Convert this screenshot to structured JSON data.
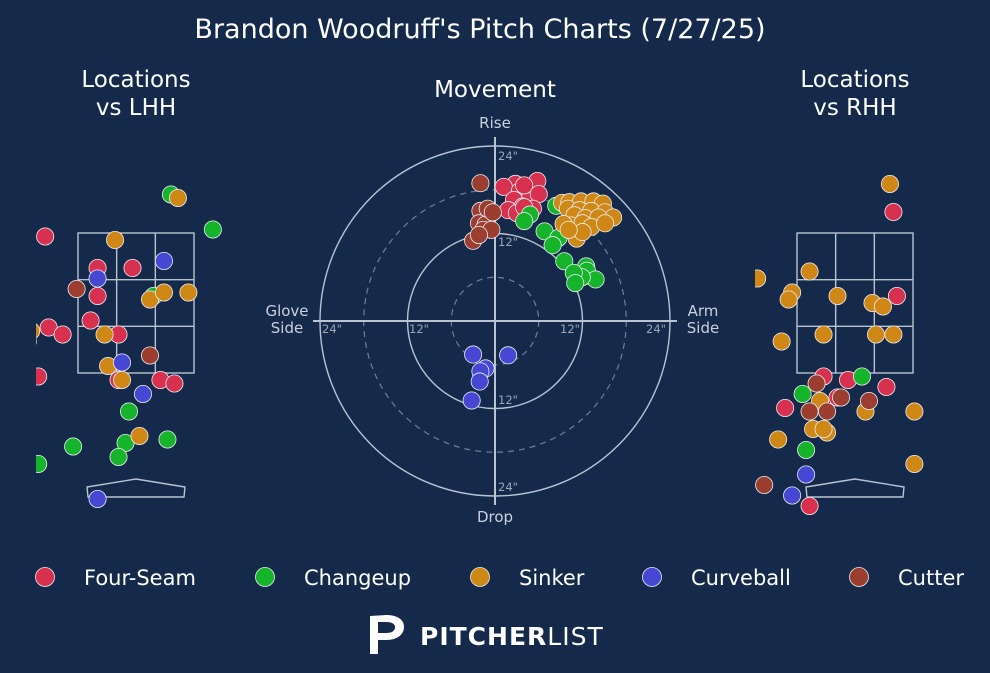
{
  "title": "Brandon Woodruff's Pitch Charts (7/27/25)",
  "colors": {
    "background": "#152a4a",
    "Four-Seam": "#d8304f",
    "Changeup": "#16b42a",
    "Sinker": "#cf8716",
    "Curveball": "#4648d4",
    "Cutter": "#9b3e30",
    "grid": "#b9c3d2"
  },
  "brand": {
    "strong": "PITCHER",
    "light": "LIST"
  },
  "chart_data": [
    {
      "type": "scatter",
      "title": "Locations\nvs LHH",
      "strike_zone": true,
      "series": [
        {
          "name": "Four-Seam",
          "points": [
            [
              -0.55,
              3.0
            ],
            [
              -0.05,
              3.0
            ],
            [
              -1.3,
              3.45
            ],
            [
              -0.55,
              2.6
            ],
            [
              -1.25,
              2.15
            ],
            [
              -0.25,
              2.05
            ],
            [
              -0.65,
              2.25
            ],
            [
              -1.55,
              2.05
            ],
            [
              -1.4,
              1.45
            ],
            [
              -1.85,
              1.75
            ],
            [
              -1.05,
              2.05
            ],
            [
              -0.25,
              1.4
            ],
            [
              0.35,
              1.4
            ],
            [
              0.55,
              1.35
            ],
            [
              -1.55,
              1.95
            ]
          ]
        },
        {
          "name": "Changeup",
          "points": [
            [
              0.5,
              4.05
            ],
            [
              1.1,
              3.55
            ],
            [
              0.25,
              2.6
            ],
            [
              -0.1,
              0.95
            ],
            [
              0.45,
              0.55
            ],
            [
              -0.15,
              0.5
            ],
            [
              -0.25,
              0.3
            ],
            [
              -0.9,
              0.45
            ],
            [
              -1.9,
              0.3
            ],
            [
              -1.4,
              0.2
            ]
          ]
        },
        {
          "name": "Sinker",
          "points": [
            [
              -1.05,
              6.1
            ],
            [
              0.6,
              4.0
            ],
            [
              -0.3,
              3.4
            ],
            [
              0.2,
              2.55
            ],
            [
              0.4,
              2.65
            ],
            [
              0.75,
              2.65
            ],
            [
              -1.95,
              2.35
            ],
            [
              -1.5,
              2.1
            ],
            [
              -0.45,
              2.05
            ],
            [
              -0.4,
              1.6
            ],
            [
              -0.2,
              1.4
            ],
            [
              0.05,
              0.6
            ]
          ]
        },
        {
          "name": "Curveball",
          "points": [
            [
              0.4,
              3.1
            ],
            [
              -0.55,
              2.85
            ],
            [
              -0.2,
              1.65
            ],
            [
              0.1,
              1.2
            ],
            [
              -0.55,
              -0.3
            ]
          ]
        },
        {
          "name": "Cutter",
          "points": [
            [
              -1.75,
              2.85
            ],
            [
              -1.65,
              2.35
            ],
            [
              -0.85,
              2.7
            ],
            [
              0.2,
              1.75
            ]
          ]
        }
      ]
    },
    {
      "type": "scatter",
      "title": "Movement",
      "axis_labels": {
        "top": "Rise",
        "bottom": "Drop",
        "left": "Glove\nSide",
        "right": "Arm\nSide"
      },
      "rings": [
        6,
        12,
        18,
        24
      ],
      "ring_labels": [
        "24\"",
        "12\"",
        "12\"",
        "24\"",
        "24\"",
        "12\"",
        "12\"",
        "24\""
      ],
      "series": [
        {
          "name": "Four-Seam",
          "points": [
            [
              2.8,
              18.8
            ],
            [
              5.8,
              19.2
            ],
            [
              1.2,
              18.4
            ],
            [
              3.4,
              17.8
            ],
            [
              4.8,
              16.9
            ],
            [
              4.0,
              18.6
            ],
            [
              6.0,
              17.4
            ],
            [
              2.6,
              16.6
            ],
            [
              3.8,
              15.7
            ],
            [
              1.8,
              15.2
            ],
            [
              5.2,
              15.4
            ],
            [
              3.0,
              14.8
            ],
            [
              4.0,
              15.6
            ]
          ]
        },
        {
          "name": "Changeup",
          "points": [
            [
              4.8,
              14.6
            ],
            [
              4.0,
              13.7
            ],
            [
              8.4,
              15.8
            ],
            [
              6.8,
              12.3
            ],
            [
              8.7,
              11.4
            ],
            [
              7.9,
              10.4
            ],
            [
              9.5,
              8.2
            ],
            [
              12.5,
              7.5
            ],
            [
              12.9,
              6.2
            ],
            [
              12.6,
              6.9
            ],
            [
              13.8,
              5.7
            ],
            [
              11.9,
              6.0
            ],
            [
              10.8,
              6.6
            ],
            [
              11.0,
              5.2
            ]
          ]
        },
        {
          "name": "Sinker",
          "points": [
            [
              9.2,
              16.2
            ],
            [
              10.2,
              16.3
            ],
            [
              11.8,
              16.4
            ],
            [
              13.5,
              16.4
            ],
            [
              14.8,
              16.1
            ],
            [
              10.0,
              15.4
            ],
            [
              11.6,
              15.2
            ],
            [
              13.2,
              15.1
            ],
            [
              15.1,
              14.9
            ],
            [
              16.2,
              14.2
            ],
            [
              10.9,
              14.5
            ],
            [
              12.4,
              14.1
            ],
            [
              14.2,
              14.2
            ],
            [
              10.5,
              13.1
            ],
            [
              12.0,
              13.4
            ],
            [
              13.2,
              12.9
            ],
            [
              15.1,
              13.4
            ],
            [
              11.2,
              11.3
            ],
            [
              12.0,
              12.2
            ],
            [
              9.4,
              13.3
            ],
            [
              10.1,
              12.5
            ]
          ]
        },
        {
          "name": "Curveball",
          "points": [
            [
              -3.0,
              -4.6
            ],
            [
              1.8,
              -4.7
            ],
            [
              -1.3,
              -6.5
            ],
            [
              -2.0,
              -6.9
            ],
            [
              -2.1,
              -8.3
            ],
            [
              -3.2,
              -10.9
            ]
          ]
        },
        {
          "name": "Cutter",
          "points": [
            [
              -2.0,
              18.9
            ],
            [
              -2.0,
              15.1
            ],
            [
              -2.2,
              13.4
            ],
            [
              -1.3,
              13.2
            ],
            [
              -1.6,
              12.5
            ],
            [
              -0.5,
              12.5
            ],
            [
              -3.0,
              11.0
            ],
            [
              -2.2,
              11.8
            ],
            [
              -1.0,
              15.4
            ],
            [
              -0.3,
              14.9
            ]
          ]
        }
      ]
    },
    {
      "type": "scatter",
      "title": "Locations\nvs RHH",
      "strike_zone": true,
      "series": [
        {
          "name": "Four-Seam",
          "points": [
            [
              0.55,
              3.8
            ],
            [
              0.6,
              2.6
            ],
            [
              -1.6,
              1.75
            ],
            [
              -0.45,
              1.45
            ],
            [
              -0.1,
              1.4
            ],
            [
              0.45,
              1.3
            ],
            [
              -0.65,
              -0.4
            ],
            [
              -1.0,
              1.0
            ],
            [
              -0.25,
              1.15
            ]
          ]
        },
        {
          "name": "Changeup",
          "points": [
            [
              0.1,
              1.45
            ],
            [
              -0.75,
              1.2
            ],
            [
              -0.7,
              0.4
            ]
          ]
        },
        {
          "name": "Sinker",
          "points": [
            [
              0.5,
              4.2
            ],
            [
              -1.4,
              2.85
            ],
            [
              -0.9,
              2.65
            ],
            [
              -0.95,
              2.55
            ],
            [
              -0.65,
              2.95
            ],
            [
              -0.25,
              2.6
            ],
            [
              0.25,
              2.5
            ],
            [
              0.4,
              2.45
            ],
            [
              -0.45,
              2.05
            ],
            [
              0.3,
              2.05
            ],
            [
              0.55,
              2.05
            ],
            [
              -1.05,
              1.95
            ],
            [
              -1.6,
              1.5
            ],
            [
              -0.5,
              1.1
            ],
            [
              0.15,
              0.95
            ],
            [
              -0.6,
              0.7
            ],
            [
              -0.4,
              0.65
            ],
            [
              -1.1,
              0.55
            ],
            [
              0.85,
              0.95
            ],
            [
              0.85,
              0.2
            ],
            [
              -0.45,
              0.7
            ]
          ]
        },
        {
          "name": "Curveball",
          "points": [
            [
              -0.7,
              0.05
            ],
            [
              -0.9,
              -0.25
            ]
          ]
        },
        {
          "name": "Cutter",
          "points": [
            [
              -0.55,
              1.35
            ],
            [
              -0.2,
              1.15
            ],
            [
              -1.3,
              -0.1
            ],
            [
              -0.4,
              0.95
            ],
            [
              0.2,
              1.1
            ],
            [
              -0.65,
              0.95
            ]
          ]
        }
      ]
    }
  ],
  "legend": [
    {
      "label": "Four-Seam"
    },
    {
      "label": "Changeup"
    },
    {
      "label": "Sinker"
    },
    {
      "label": "Curveball"
    },
    {
      "label": "Cutter"
    }
  ]
}
